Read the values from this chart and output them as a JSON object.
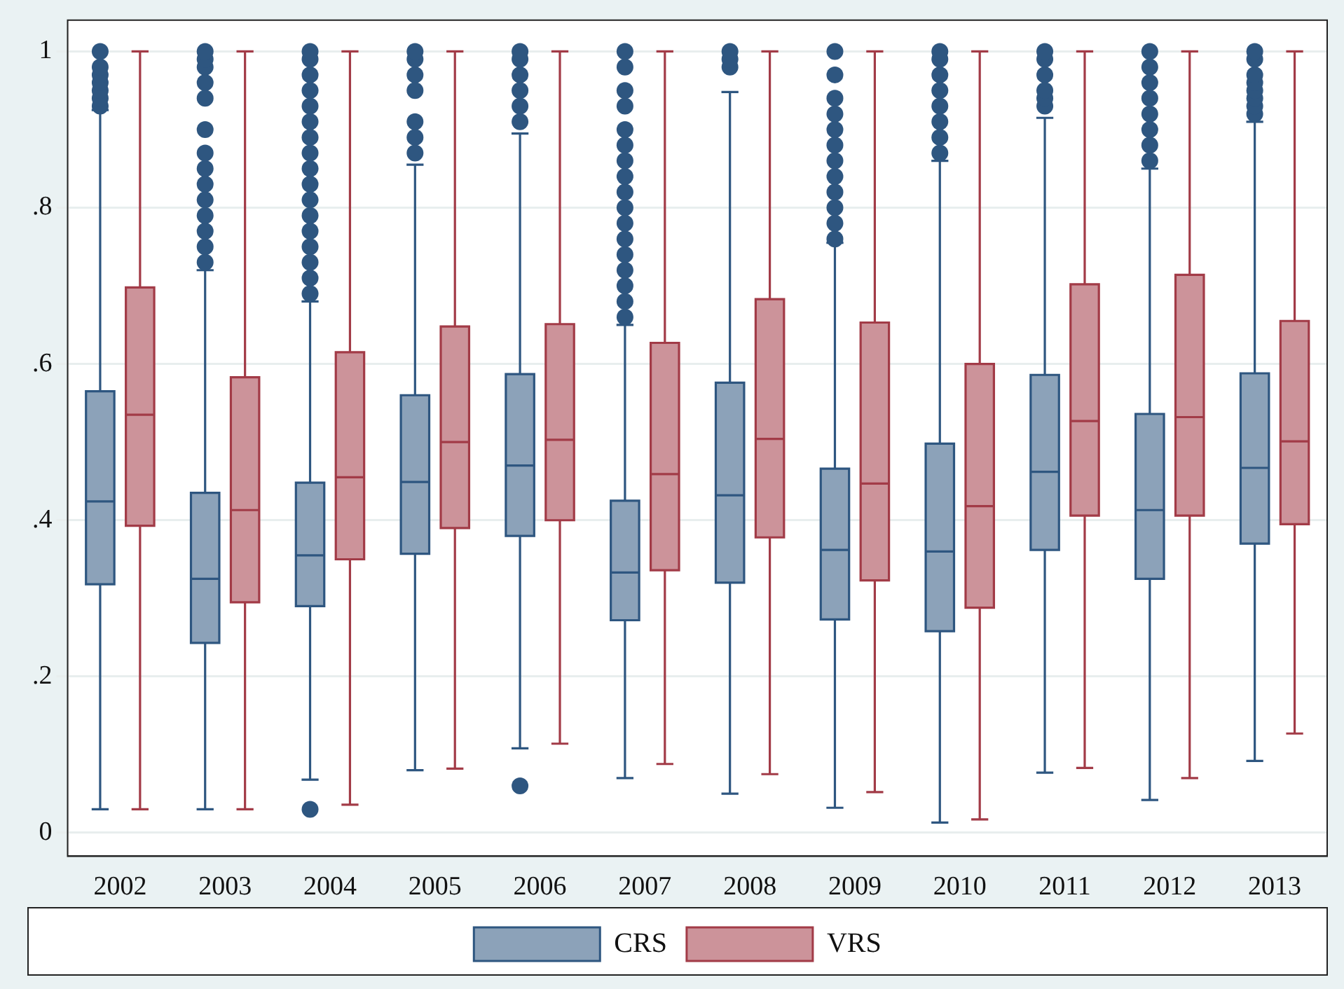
{
  "chart_data": {
    "type": "box",
    "categories": [
      "2002",
      "2003",
      "2004",
      "2005",
      "2006",
      "2007",
      "2008",
      "2009",
      "2010",
      "2011",
      "2012",
      "2013"
    ],
    "ylim": [
      -0.03,
      1.04
    ],
    "yticks": [
      {
        "value": 0,
        "label": "0"
      },
      {
        "value": 0.2,
        "label": ".2"
      },
      {
        "value": 0.4,
        "label": ".4"
      },
      {
        "value": 0.6,
        "label": ".6"
      },
      {
        "value": 0.8,
        "label": ".8"
      },
      {
        "value": 1,
        "label": "1"
      }
    ],
    "grid": "y",
    "legend": "bottom",
    "marker": "circle",
    "series": [
      {
        "name": "CRS",
        "color": "#8ca2b9",
        "boxes": [
          {
            "low": 0.03,
            "q1": 0.318,
            "median": 0.424,
            "q3": 0.565,
            "high": 0.925,
            "outliers": [
              0.93,
              0.94,
              0.95,
              0.96,
              0.97,
              0.98,
              1
            ]
          },
          {
            "low": 0.03,
            "q1": 0.243,
            "median": 0.325,
            "q3": 0.435,
            "high": 0.72,
            "outliers": [
              0.73,
              0.75,
              0.77,
              0.79,
              0.81,
              0.83,
              0.85,
              0.87,
              0.9,
              0.94,
              0.96,
              0.98,
              0.99,
              1
            ]
          },
          {
            "low": 0.068,
            "q1": 0.29,
            "median": 0.355,
            "q3": 0.448,
            "high": 0.68,
            "outliers": [
              0.03,
              0.69,
              0.71,
              0.73,
              0.75,
              0.77,
              0.79,
              0.81,
              0.83,
              0.85,
              0.87,
              0.89,
              0.91,
              0.93,
              0.95,
              0.97,
              0.99,
              1
            ]
          },
          {
            "low": 0.08,
            "q1": 0.357,
            "median": 0.449,
            "q3": 0.56,
            "high": 0.855,
            "outliers": [
              0.87,
              0.89,
              0.91,
              0.95,
              0.97,
              0.99,
              1
            ]
          },
          {
            "low": 0.108,
            "q1": 0.38,
            "median": 0.47,
            "q3": 0.587,
            "high": 0.895,
            "outliers": [
              0.06,
              0.91,
              0.93,
              0.95,
              0.97,
              0.99,
              1
            ]
          },
          {
            "low": 0.07,
            "q1": 0.272,
            "median": 0.333,
            "q3": 0.425,
            "high": 0.65,
            "outliers": [
              0.66,
              0.68,
              0.7,
              0.72,
              0.74,
              0.76,
              0.78,
              0.8,
              0.82,
              0.84,
              0.86,
              0.88,
              0.9,
              0.93,
              0.95,
              0.98,
              1
            ]
          },
          {
            "low": 0.05,
            "q1": 0.32,
            "median": 0.432,
            "q3": 0.576,
            "high": 0.948,
            "outliers": [
              0.98,
              0.99,
              1
            ]
          },
          {
            "low": 0.032,
            "q1": 0.273,
            "median": 0.362,
            "q3": 0.466,
            "high": 0.755,
            "outliers": [
              0.76,
              0.78,
              0.8,
              0.82,
              0.84,
              0.86,
              0.88,
              0.9,
              0.92,
              0.94,
              0.97,
              1
            ]
          },
          {
            "low": 0.013,
            "q1": 0.258,
            "median": 0.36,
            "q3": 0.498,
            "high": 0.86,
            "outliers": [
              0.87,
              0.89,
              0.91,
              0.93,
              0.95,
              0.97,
              0.99,
              1
            ]
          },
          {
            "low": 0.077,
            "q1": 0.362,
            "median": 0.462,
            "q3": 0.586,
            "high": 0.915,
            "outliers": [
              0.93,
              0.94,
              0.95,
              0.97,
              0.99,
              1
            ]
          },
          {
            "low": 0.042,
            "q1": 0.325,
            "median": 0.413,
            "q3": 0.536,
            "high": 0.85,
            "outliers": [
              0.86,
              0.88,
              0.9,
              0.92,
              0.94,
              0.96,
              0.98,
              1
            ]
          },
          {
            "low": 0.092,
            "q1": 0.37,
            "median": 0.467,
            "q3": 0.588,
            "high": 0.91,
            "outliers": [
              0.92,
              0.93,
              0.94,
              0.95,
              0.96,
              0.97,
              0.99,
              1
            ]
          }
        ]
      },
      {
        "name": "VRS",
        "color": "#cc939a",
        "boxes": [
          {
            "low": 0.03,
            "q1": 0.393,
            "median": 0.535,
            "q3": 0.698,
            "high": 1
          },
          {
            "low": 0.03,
            "q1": 0.295,
            "median": 0.413,
            "q3": 0.583,
            "high": 1
          },
          {
            "low": 0.036,
            "q1": 0.35,
            "median": 0.455,
            "q3": 0.615,
            "high": 1
          },
          {
            "low": 0.082,
            "q1": 0.39,
            "median": 0.5,
            "q3": 0.648,
            "high": 1
          },
          {
            "low": 0.114,
            "q1": 0.4,
            "median": 0.503,
            "q3": 0.651,
            "high": 1
          },
          {
            "low": 0.088,
            "q1": 0.336,
            "median": 0.459,
            "q3": 0.627,
            "high": 1
          },
          {
            "low": 0.075,
            "q1": 0.378,
            "median": 0.504,
            "q3": 0.683,
            "high": 1
          },
          {
            "low": 0.052,
            "q1": 0.323,
            "median": 0.447,
            "q3": 0.653,
            "high": 1
          },
          {
            "low": 0.017,
            "q1": 0.288,
            "median": 0.418,
            "q3": 0.6,
            "high": 1
          },
          {
            "low": 0.083,
            "q1": 0.406,
            "median": 0.527,
            "q3": 0.702,
            "high": 1
          },
          {
            "low": 0.07,
            "q1": 0.406,
            "median": 0.532,
            "q3": 0.714,
            "high": 1
          },
          {
            "low": 0.127,
            "q1": 0.395,
            "median": 0.501,
            "q3": 0.655,
            "high": 1
          }
        ]
      }
    ]
  }
}
